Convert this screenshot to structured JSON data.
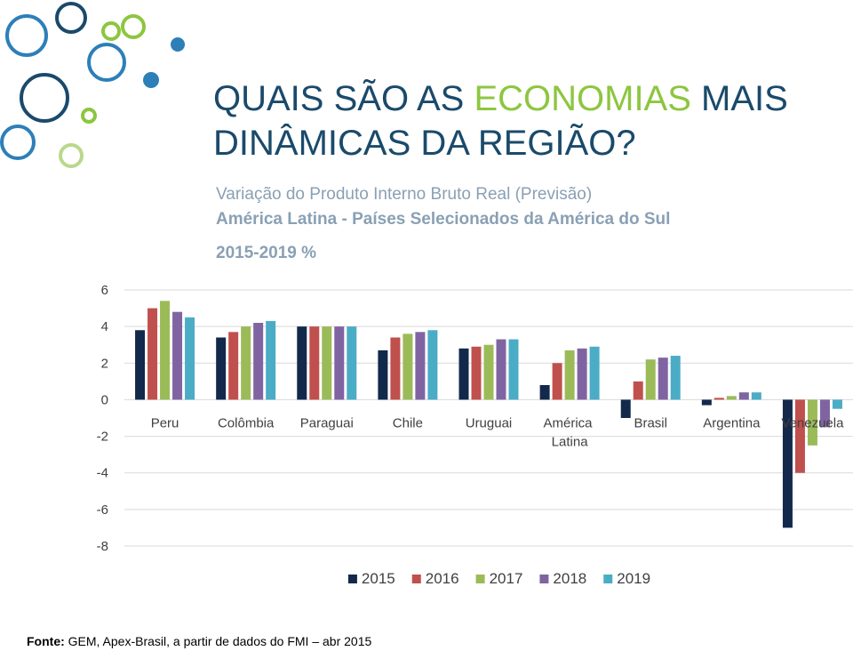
{
  "slide": {
    "title_parts": [
      "QUAIS SÃO AS ",
      "ECONOMIAS",
      " MAIS",
      "DINÂMICAS DA REGIÃO?"
    ],
    "subtitle_lines": [
      "Variação do Produto Interno Bruto Real (Previsão)",
      "América Latina - Países Selecionados da América do Sul"
    ],
    "period": "2015-2019 %",
    "source_label": "Fonte:",
    "source": " GEM, Apex-Brasil, a partir de dados do FMI – abr 2015"
  },
  "chart_data": {
    "type": "bar",
    "categories": [
      "Peru",
      "Colômbia",
      "Paraguai",
      "Chile",
      "Uruguai",
      "América Latina",
      "Brasil",
      "Argentina",
      "Venezuela"
    ],
    "series": [
      {
        "name": "2015",
        "color": "#13294b",
        "values": [
          3.8,
          3.4,
          4.0,
          2.7,
          2.8,
          0.8,
          -1.0,
          -0.3,
          -7.0
        ]
      },
      {
        "name": "2016",
        "color": "#c0504d",
        "values": [
          5.0,
          3.7,
          4.0,
          3.4,
          2.9,
          2.0,
          1.0,
          0.1,
          -4.0
        ]
      },
      {
        "name": "2017",
        "color": "#9bbb59",
        "values": [
          5.4,
          4.0,
          4.0,
          3.6,
          3.0,
          2.7,
          2.2,
          0.2,
          -2.5
        ]
      },
      {
        "name": "2018",
        "color": "#8064a2",
        "values": [
          4.8,
          4.2,
          4.0,
          3.7,
          3.3,
          2.8,
          2.3,
          0.4,
          -1.5
        ]
      },
      {
        "name": "2019",
        "color": "#4bacc6",
        "values": [
          4.5,
          4.3,
          4.0,
          3.8,
          3.3,
          2.9,
          2.4,
          0.4,
          -0.5
        ]
      }
    ],
    "ylim": [
      -8,
      6
    ],
    "yticks": [
      -8,
      -6,
      -4,
      -2,
      0,
      2,
      4,
      6
    ],
    "grid": true,
    "legend": "bottom"
  }
}
